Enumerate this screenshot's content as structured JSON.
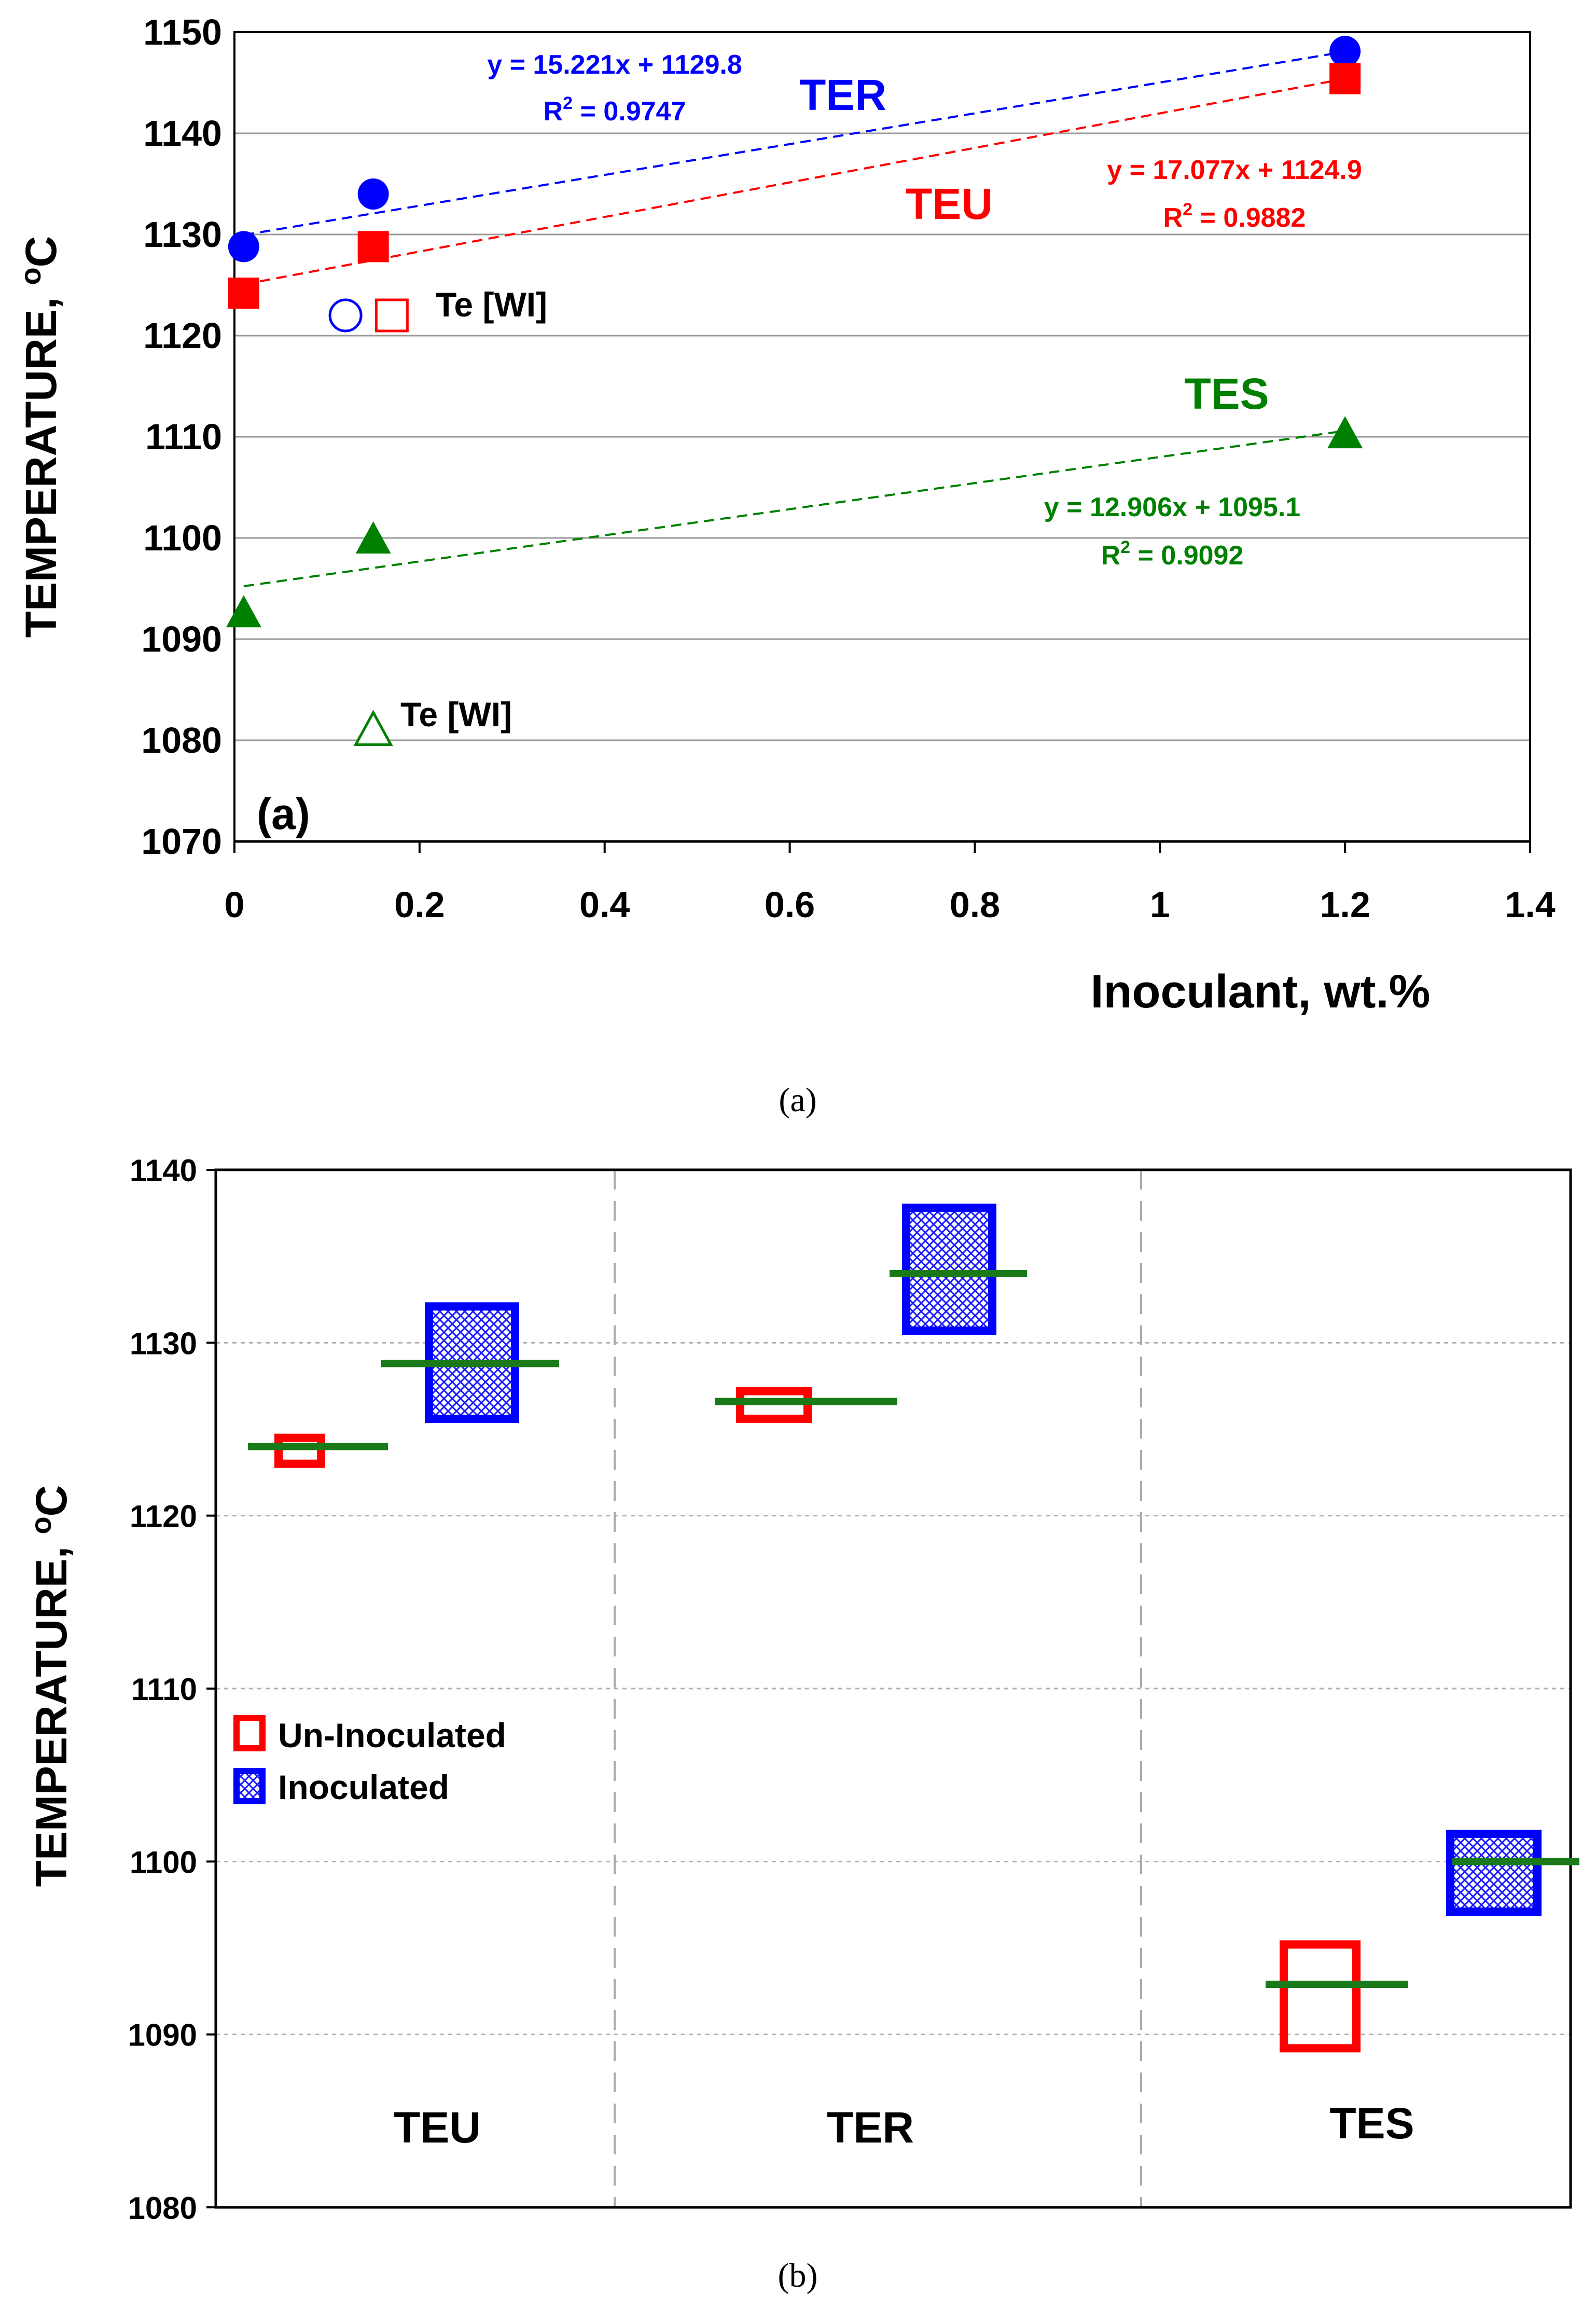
{
  "chart_data": [
    {
      "panel": "a",
      "type": "scatter",
      "ylabel": "TEMPERATURE, °C",
      "ylabel_prefix": "TEMPERATURE, ",
      "ylabel_deg": "o",
      "ylabel_unit": "C",
      "xlabel": "Inoculant, wt.%",
      "xlim": [
        0,
        1.4
      ],
      "ylim": [
        1070,
        1150
      ],
      "xticks": [
        "0",
        "0.2",
        "0.4",
        "0.6",
        "0.8",
        "1",
        "1.2",
        "1.4"
      ],
      "yticks": [
        "1070",
        "1080",
        "1090",
        "1100",
        "1110",
        "1120",
        "1130",
        "1140",
        "1150"
      ],
      "panel_label": "(a)",
      "caption": "(a)",
      "series": [
        {
          "name": "TER",
          "color": "#0000ff",
          "marker": "circle",
          "x": [
            0.01,
            0.15,
            1.2
          ],
          "y": [
            1128.8,
            1134.0,
            1148.1
          ],
          "trend_eq": "y = 15.221x + 1129.8",
          "r2_prefix": "R",
          "r2_sup": "2",
          "r2_value": " = 0.9747",
          "slope": 15.221,
          "intercept": 1129.8
        },
        {
          "name": "TEU",
          "color": "#ff0000",
          "marker": "square",
          "x": [
            0.01,
            0.15,
            1.2
          ],
          "y": [
            1124.2,
            1128.8,
            1145.4
          ],
          "trend_eq": "y = 17.077x + 1124.9",
          "r2_prefix": "R",
          "r2_sup": "2",
          "r2_value": " = 0.9882",
          "slope": 17.077,
          "intercept": 1124.9
        },
        {
          "name": "TES",
          "color": "#008000",
          "marker": "triangle",
          "x": [
            0.01,
            0.15,
            1.2
          ],
          "y": [
            1092.6,
            1099.9,
            1110.3
          ],
          "trend_eq": "y = 12.906x + 1095.1",
          "r2_prefix": "R",
          "r2_sup": "2",
          "r2_value": " = 0.9092",
          "slope": 12.906,
          "intercept": 1095.1
        }
      ],
      "te_wi": [
        {
          "label": "Te [WI]",
          "points": [
            {
              "marker": "circle-open",
              "color": "#0000ff",
              "x": 0.12,
              "y": 1122.0
            },
            {
              "marker": "square-open",
              "color": "#ff0000",
              "x": 0.17,
              "y": 1122.0
            }
          ]
        },
        {
          "label": "Te [WI]",
          "points": [
            {
              "marker": "triangle-open",
              "color": "#008000",
              "x": 0.15,
              "y": 1081.0
            }
          ]
        }
      ]
    },
    {
      "panel": "b",
      "type": "box",
      "ylabel": "TEMPERATURE, °C",
      "ylabel_prefix": "TEMPERATURE, ",
      "ylabel_deg": "o",
      "ylabel_unit": "C",
      "ylim": [
        1080,
        1140
      ],
      "yticks": [
        "1080",
        "1090",
        "1100",
        "1110",
        "1120",
        "1130",
        "1140"
      ],
      "categories": [
        "TEU",
        "TER",
        "TES"
      ],
      "caption": "(b)",
      "legend": [
        {
          "label": "Un-Inoculated",
          "color": "#ff0000",
          "style": "open"
        },
        {
          "label": "Inoculated",
          "color": "#0000ff",
          "style": "hatched"
        }
      ],
      "boxes": [
        {
          "category": "TEU",
          "group": "Un-Inoculated",
          "low": 1123.0,
          "high": 1124.5,
          "mean": 1124.0
        },
        {
          "category": "TEU",
          "group": "Inoculated",
          "low": 1125.6,
          "high": 1132.1,
          "mean": 1128.8
        },
        {
          "category": "TER",
          "group": "Un-Inoculated",
          "low": 1125.6,
          "high": 1127.2,
          "mean": 1126.6
        },
        {
          "category": "TER",
          "group": "Inoculated",
          "low": 1130.7,
          "high": 1137.8,
          "mean": 1134.0
        },
        {
          "category": "TES",
          "group": "Un-Inoculated",
          "low": 1089.2,
          "high": 1095.2,
          "mean": 1092.9
        },
        {
          "category": "TES",
          "group": "Inoculated",
          "low": 1097.1,
          "high": 1101.6,
          "mean": 1100.0
        }
      ]
    }
  ]
}
